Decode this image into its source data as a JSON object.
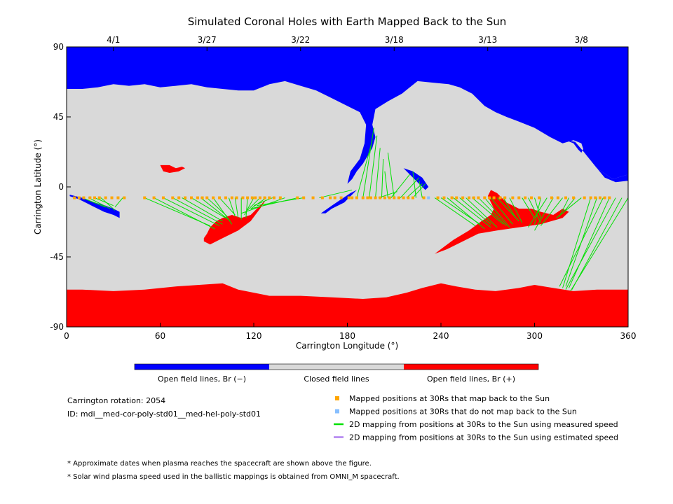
{
  "title": "Simulated Coronal Holes with Earth Mapped Back to the Sun",
  "colors": {
    "open_negative": "#0000ff",
    "closed": "#d9d9d9",
    "open_positive": "#ff0000",
    "mapped": "#ffa500",
    "unmapped": "#87bfff",
    "measured": "#00e000",
    "estimated": "#b080f0"
  },
  "chart_data": {
    "type": "map",
    "title": "Simulated Coronal Holes with Earth Mapped Back to the Sun",
    "xlabel": "Carrington Longitude (°)",
    "ylabel": "Carrington Latitude (°)",
    "xlim": [
      0,
      360
    ],
    "ylim": [
      -90,
      90
    ],
    "x_ticks": [
      "0",
      "60",
      "120",
      "180",
      "240",
      "300",
      "360"
    ],
    "y_ticks": [
      "90",
      "45",
      "0",
      "-45",
      "-90"
    ],
    "top_axis": {
      "dates": [
        {
          "label": "4/1",
          "lon": 30
        },
        {
          "label": "3/27",
          "lon": 90
        },
        {
          "label": "3/22",
          "lon": 150
        },
        {
          "label": "3/18",
          "lon": 210
        },
        {
          "label": "3/13",
          "lon": 270
        },
        {
          "label": "3/8",
          "lon": 330
        }
      ]
    },
    "regions": {
      "north_polar_hole": {
        "polarity": "negative",
        "boundary": [
          [
            0,
            90
          ],
          [
            360,
            90
          ],
          [
            360,
            8
          ],
          [
            350,
            5
          ],
          [
            340,
            12
          ],
          [
            332,
            22
          ],
          [
            330,
            28
          ],
          [
            325,
            30
          ],
          [
            318,
            28
          ],
          [
            310,
            32
          ],
          [
            300,
            38
          ],
          [
            290,
            42
          ],
          [
            282,
            45
          ],
          [
            275,
            48
          ],
          [
            268,
            52
          ],
          [
            260,
            60
          ],
          [
            252,
            64
          ],
          [
            245,
            66
          ],
          [
            235,
            67
          ],
          [
            225,
            68
          ],
          [
            215,
            60
          ],
          [
            206,
            55
          ],
          [
            198,
            50
          ],
          [
            196,
            40
          ],
          [
            198,
            32
          ],
          [
            196,
            25
          ],
          [
            193,
            20
          ],
          [
            190,
            15
          ],
          [
            186,
            10
          ],
          [
            183,
            5
          ],
          [
            180,
            2
          ],
          [
            182,
            10
          ],
          [
            188,
            18
          ],
          [
            191,
            28
          ],
          [
            192,
            40
          ],
          [
            188,
            48
          ],
          [
            180,
            52
          ],
          [
            170,
            57
          ],
          [
            160,
            62
          ],
          [
            150,
            65
          ],
          [
            140,
            68
          ],
          [
            130,
            66
          ],
          [
            120,
            62
          ],
          [
            110,
            62
          ],
          [
            100,
            63
          ],
          [
            90,
            64
          ],
          [
            80,
            66
          ],
          [
            70,
            65
          ],
          [
            60,
            64
          ],
          [
            50,
            66
          ],
          [
            40,
            65
          ],
          [
            30,
            66
          ],
          [
            20,
            64
          ],
          [
            10,
            63
          ],
          [
            0,
            63
          ]
        ]
      },
      "north_polar_tongue": {
        "polarity": "negative",
        "boundary": [
          [
            300,
            38
          ],
          [
            310,
            34
          ],
          [
            320,
            30
          ],
          [
            325,
            28
          ],
          [
            328,
            24
          ],
          [
            330,
            22
          ],
          [
            334,
            30
          ],
          [
            336,
            32
          ],
          [
            336,
            25
          ],
          [
            340,
            12
          ],
          [
            345,
            6
          ],
          [
            352,
            3
          ],
          [
            360,
            4
          ],
          [
            360,
            8
          ],
          [
            350,
            5
          ],
          [
            340,
            12
          ],
          [
            332,
            22
          ],
          [
            326,
            29
          ],
          [
            320,
            30
          ],
          [
            312,
            33
          ],
          [
            302,
            38
          ]
        ]
      },
      "north_midlat_blue_patch": {
        "polarity": "negative",
        "boundary": [
          [
            216,
            12
          ],
          [
            222,
            10
          ],
          [
            228,
            6
          ],
          [
            232,
            0
          ],
          [
            230,
            -2
          ],
          [
            226,
            2
          ],
          [
            222,
            6
          ],
          [
            218,
            10
          ]
        ]
      },
      "equatorial_blue_left": {
        "polarity": "negative",
        "boundary": [
          [
            2,
            -5
          ],
          [
            10,
            -7
          ],
          [
            18,
            -10
          ],
          [
            25,
            -12
          ],
          [
            30,
            -14
          ],
          [
            34,
            -16
          ],
          [
            34,
            -20
          ],
          [
            30,
            -18
          ],
          [
            24,
            -16
          ],
          [
            16,
            -12
          ],
          [
            8,
            -8
          ],
          [
            2,
            -6
          ]
        ]
      },
      "equatorial_blue_mid": {
        "polarity": "negative",
        "boundary": [
          [
            163,
            -17
          ],
          [
            170,
            -12
          ],
          [
            176,
            -8
          ],
          [
            182,
            -4
          ],
          [
            186,
            -2
          ],
          [
            184,
            -4
          ],
          [
            178,
            -10
          ],
          [
            170,
            -14
          ],
          [
            166,
            -17
          ]
        ]
      },
      "red_small_north": {
        "polarity": "positive",
        "boundary": [
          [
            60,
            14
          ],
          [
            66,
            14
          ],
          [
            70,
            12
          ],
          [
            74,
            13
          ],
          [
            76,
            12
          ],
          [
            72,
            10
          ],
          [
            66,
            9
          ],
          [
            62,
            10
          ]
        ]
      },
      "red_middle": {
        "polarity": "positive",
        "boundary": [
          [
            88,
            -35
          ],
          [
            92,
            -37
          ],
          [
            100,
            -33
          ],
          [
            110,
            -28
          ],
          [
            118,
            -22
          ],
          [
            124,
            -14
          ],
          [
            128,
            -8
          ],
          [
            124,
            -12
          ],
          [
            118,
            -18
          ],
          [
            112,
            -20
          ],
          [
            106,
            -18
          ],
          [
            100,
            -20
          ],
          [
            96,
            -22
          ],
          [
            92,
            -26
          ],
          [
            90,
            -30
          ],
          [
            88,
            -33
          ]
        ]
      },
      "red_right": {
        "polarity": "positive",
        "boundary": [
          [
            236,
            -43
          ],
          [
            244,
            -40
          ],
          [
            256,
            -34
          ],
          [
            264,
            -30
          ],
          [
            276,
            -28
          ],
          [
            290,
            -26
          ],
          [
            304,
            -24
          ],
          [
            318,
            -20
          ],
          [
            322,
            -16
          ],
          [
            318,
            -14
          ],
          [
            312,
            -18
          ],
          [
            304,
            -16
          ],
          [
            298,
            -14
          ],
          [
            290,
            -14
          ],
          [
            282,
            -10
          ],
          [
            276,
            -4
          ],
          [
            272,
            -2
          ],
          [
            270,
            -6
          ],
          [
            274,
            -14
          ],
          [
            272,
            -18
          ],
          [
            266,
            -22
          ],
          [
            258,
            -28
          ],
          [
            248,
            -34
          ],
          [
            240,
            -40
          ]
        ]
      },
      "south_polar_hole": {
        "polarity": "positive",
        "boundary": [
          [
            0,
            -90
          ],
          [
            360,
            -90
          ],
          [
            360,
            -66
          ],
          [
            340,
            -66
          ],
          [
            325,
            -67
          ],
          [
            312,
            -65
          ],
          [
            300,
            -63
          ],
          [
            290,
            -65
          ],
          [
            275,
            -67
          ],
          [
            262,
            -66
          ],
          [
            250,
            -64
          ],
          [
            240,
            -62
          ],
          [
            228,
            -65
          ],
          [
            218,
            -68
          ],
          [
            205,
            -71
          ],
          [
            190,
            -72
          ],
          [
            170,
            -71
          ],
          [
            150,
            -70
          ],
          [
            130,
            -70
          ],
          [
            110,
            -66
          ],
          [
            100,
            -62
          ],
          [
            85,
            -63
          ],
          [
            70,
            -64
          ],
          [
            50,
            -66
          ],
          [
            30,
            -67
          ],
          [
            10,
            -66
          ],
          [
            0,
            -66
          ]
        ]
      }
    },
    "mapped_latitude": -7,
    "mapped_longitudes": [
      5,
      8,
      11,
      15,
      18,
      21,
      25,
      29,
      33,
      37,
      50,
      56,
      62,
      68,
      72,
      76,
      80,
      84,
      87,
      90,
      94,
      98,
      102,
      106,
      109,
      113,
      116,
      119,
      121,
      124,
      127,
      130,
      133,
      137,
      148,
      152,
      158,
      164,
      169,
      172,
      176,
      181,
      183,
      186,
      190,
      193,
      195,
      198,
      201,
      204,
      207,
      210,
      213,
      216,
      219,
      222,
      229,
      238,
      242,
      247,
      250,
      254,
      258,
      261,
      264,
      268,
      271,
      274,
      278,
      281,
      286,
      290,
      294,
      298,
      303,
      311,
      315,
      320,
      325,
      332,
      336,
      339,
      342,
      345,
      348
    ],
    "unmapped_longitudes": [
      232
    ],
    "mapping_lines": [
      [
        10,
        -7,
        25,
        -13
      ],
      [
        14,
        -7,
        28,
        -14
      ],
      [
        18,
        -7,
        30,
        -12
      ],
      [
        22,
        -7,
        31,
        -15
      ],
      [
        36,
        -7,
        31,
        -13
      ],
      [
        50,
        -7,
        92,
        -25
      ],
      [
        56,
        -7,
        95,
        -27
      ],
      [
        62,
        -7,
        98,
        -25
      ],
      [
        68,
        -7,
        100,
        -24
      ],
      [
        74,
        -7,
        100,
        -22
      ],
      [
        80,
        -7,
        102,
        -20
      ],
      [
        86,
        -7,
        105,
        -22
      ],
      [
        90,
        -7,
        103,
        -19
      ],
      [
        94,
        -7,
        106,
        -24
      ],
      [
        98,
        -7,
        108,
        -18
      ],
      [
        104,
        -7,
        108,
        -19
      ],
      [
        108,
        -7,
        110,
        -20
      ],
      [
        112,
        -7,
        112,
        -21
      ],
      [
        116,
        -7,
        115,
        -20
      ],
      [
        120,
        -7,
        114,
        -18
      ],
      [
        124,
        -7,
        116,
        -15
      ],
      [
        128,
        -7,
        118,
        -14
      ],
      [
        132,
        -7,
        120,
        -12
      ],
      [
        140,
        -7,
        112,
        -17
      ],
      [
        148,
        -7,
        118,
        -14
      ],
      [
        152,
        -7,
        122,
        -12
      ],
      [
        162,
        -7,
        183,
        -2
      ],
      [
        186,
        -7,
        196,
        30
      ],
      [
        190,
        -7,
        197,
        38
      ],
      [
        194,
        -7,
        199,
        33
      ],
      [
        198,
        -7,
        201,
        25
      ],
      [
        202,
        -7,
        203,
        18
      ],
      [
        206,
        -7,
        204,
        10
      ],
      [
        210,
        -7,
        206,
        22
      ],
      [
        200,
        -7,
        212,
        -3
      ],
      [
        208,
        -7,
        220,
        8
      ],
      [
        214,
        -7,
        226,
        6
      ],
      [
        218,
        -7,
        228,
        2
      ],
      [
        222,
        -7,
        230,
        2
      ],
      [
        224,
        -7,
        222,
        10
      ],
      [
        228,
        -7,
        226,
        4
      ],
      [
        236,
        -7,
        262,
        -25
      ],
      [
        240,
        -7,
        265,
        -24
      ],
      [
        244,
        -7,
        268,
        -27
      ],
      [
        248,
        -7,
        272,
        -26
      ],
      [
        252,
        -7,
        272,
        -24
      ],
      [
        256,
        -7,
        276,
        -26
      ],
      [
        260,
        -7,
        280,
        -24
      ],
      [
        264,
        -7,
        282,
        -25
      ],
      [
        268,
        -7,
        284,
        -26
      ],
      [
        272,
        -7,
        286,
        -24
      ],
      [
        276,
        -7,
        290,
        -22
      ],
      [
        280,
        -7,
        288,
        -20
      ],
      [
        284,
        -7,
        292,
        -23
      ],
      [
        292,
        -7,
        300,
        -20
      ],
      [
        296,
        -7,
        304,
        -23
      ],
      [
        300,
        -7,
        304,
        -20
      ],
      [
        304,
        -7,
        300,
        -24
      ],
      [
        308,
        -7,
        296,
        -26
      ],
      [
        312,
        -7,
        300,
        -28
      ],
      [
        318,
        -7,
        304,
        -25
      ],
      [
        322,
        -7,
        316,
        -19
      ],
      [
        326,
        -7,
        318,
        -17
      ],
      [
        330,
        -7,
        314,
        -20
      ],
      [
        336,
        -7,
        318,
        -65
      ],
      [
        340,
        -7,
        320,
        -64
      ],
      [
        344,
        -7,
        316,
        -64
      ],
      [
        348,
        -7,
        322,
        -65
      ],
      [
        352,
        -7,
        320,
        -66
      ],
      [
        356,
        -7,
        324,
        -66
      ],
      [
        360,
        -7,
        323,
        -67
      ]
    ],
    "colorbar": [
      {
        "label": "Open field lines, Br (−)",
        "color": "#0000ff"
      },
      {
        "label": "Closed field lines",
        "color": "#d9d9d9"
      },
      {
        "label": "Open field lines, Br (+)",
        "color": "#ff0000"
      }
    ],
    "legend": [
      {
        "kind": "square",
        "color": "#ffa500",
        "label": "Mapped positions at 30Rs that map back to the Sun"
      },
      {
        "kind": "square",
        "color": "#87bfff",
        "label": "Mapped positions at 30Rs that do not map back to the Sun"
      },
      {
        "kind": "line",
        "color": "#00e000",
        "label": "2D mapping from positions at 30Rs to the Sun using measured speed"
      },
      {
        "kind": "line",
        "color": "#b080f0",
        "label": "2D mapping from positions at 30Rs to the Sun using estimated speed"
      }
    ]
  },
  "info": {
    "rotation": "Carrington rotation: 2054",
    "id": "ID: mdi__med-cor-poly-std01__med-hel-poly-std01"
  },
  "notes": [
    "* Approximate dates when plasma reaches the spacecraft are shown above the figure.",
    "* Solar wind plasma speed used in the ballistic mappings is obtained from OMNI_M spacecraft."
  ]
}
